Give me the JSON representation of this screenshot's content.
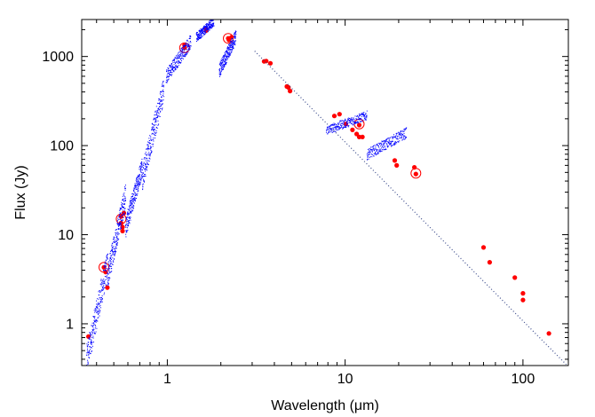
{
  "chart_data": {
    "type": "scatter",
    "xlabel": "Wavelength (μm)",
    "ylabel": "Flux (Jy)",
    "x_scale": "log",
    "y_scale": "log",
    "xlim": [
      0.33,
      180
    ],
    "ylim": [
      0.34,
      2600
    ],
    "x_ticks": [
      {
        "value": 1,
        "label": "1"
      },
      {
        "value": 10,
        "label": "10"
      },
      {
        "value": 100,
        "label": "100"
      }
    ],
    "y_ticks": [
      {
        "value": 1,
        "label": "1"
      },
      {
        "value": 10,
        "label": "10"
      },
      {
        "value": 100,
        "label": "100"
      },
      {
        "value": 1000,
        "label": "1000"
      }
    ],
    "grid": false,
    "legend": "none",
    "colors": {
      "photometry": "#ff0000",
      "spectrum": "#0000ff",
      "model": "#3a4a8a",
      "frame": "#000000"
    },
    "series": [
      {
        "kind": "photometry",
        "marker": "filled-circle",
        "points": [
          [
            0.36,
            0.72
          ],
          [
            0.44,
            4.3
          ],
          [
            0.45,
            3.8
          ],
          [
            0.46,
            2.55
          ],
          [
            0.55,
            13.5
          ],
          [
            0.55,
            16.0
          ],
          [
            0.56,
            12.2
          ],
          [
            0.56,
            11.0
          ],
          [
            0.57,
            17.5
          ],
          [
            1.25,
            1340
          ],
          [
            1.25,
            1250
          ],
          [
            1.65,
            2020
          ],
          [
            1.65,
            1950
          ],
          [
            1.66,
            2000
          ],
          [
            2.2,
            1600
          ],
          [
            2.22,
            1530
          ],
          [
            2.3,
            1650
          ],
          [
            3.5,
            880
          ],
          [
            3.6,
            890
          ],
          [
            3.8,
            840
          ],
          [
            4.7,
            460
          ],
          [
            4.8,
            450
          ],
          [
            4.9,
            410
          ],
          [
            8.7,
            215
          ],
          [
            9.3,
            225
          ],
          [
            10.1,
            175
          ],
          [
            11.0,
            150
          ],
          [
            11.6,
            135
          ],
          [
            12.0,
            125
          ],
          [
            12.0,
            170
          ],
          [
            12.5,
            125
          ],
          [
            19.0,
            68
          ],
          [
            19.5,
            60
          ],
          [
            24.5,
            57
          ],
          [
            25.0,
            48
          ],
          [
            60,
            7.2
          ],
          [
            65,
            4.9
          ],
          [
            90,
            3.3
          ],
          [
            100,
            2.2
          ],
          [
            100,
            1.85
          ],
          [
            140,
            0.78
          ]
        ]
      },
      {
        "kind": "photometry-highlighted",
        "marker": "ring",
        "points": [
          [
            0.44,
            4.3
          ],
          [
            0.55,
            15.0
          ],
          [
            1.25,
            1250
          ],
          [
            2.2,
            1600
          ],
          [
            12.0,
            175
          ],
          [
            25.0,
            49
          ]
        ]
      },
      {
        "kind": "model",
        "line": "dotted",
        "points": [
          [
            3.1,
            1150
          ],
          [
            175,
            0.35
          ]
        ]
      },
      {
        "kind": "spectrum",
        "marker": "small-dots",
        "pieces": [
          {
            "x0": 0.35,
            "x1": 0.46,
            "lo": 0.4,
            "hi": 4.8
          },
          {
            "x0": 0.46,
            "x1": 0.58,
            "lo": 3.5,
            "hi": 28
          },
          {
            "x0": 0.58,
            "x1": 0.72,
            "lo": 12,
            "hi": 60
          },
          {
            "x0": 0.72,
            "x1": 0.95,
            "lo": 45,
            "hi": 430
          },
          {
            "x0": 0.98,
            "x1": 1.35,
            "lo": 600,
            "hi": 1500
          },
          {
            "x0": 1.45,
            "x1": 1.82,
            "lo": 1650,
            "hi": 2500
          },
          {
            "x0": 1.95,
            "x1": 2.42,
            "lo": 700,
            "hi": 1700
          },
          {
            "x0": 7.8,
            "x1": 13.2,
            "lo": 150,
            "hi": 220
          },
          {
            "x0": 13.2,
            "x1": 22.0,
            "lo": 80,
            "hi": 140
          }
        ]
      }
    ]
  }
}
